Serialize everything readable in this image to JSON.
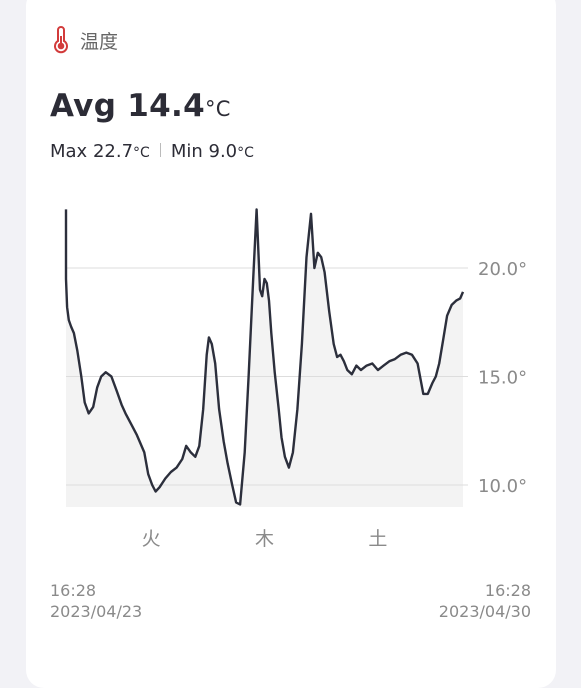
{
  "header": {
    "title": "温度",
    "icon": "thermometer-icon"
  },
  "summary": {
    "avg_label": "Avg",
    "avg_value": "14.4",
    "unit": "°C",
    "max_label": "Max",
    "max_value": "22.7",
    "min_label": "Min",
    "min_value": "9.0"
  },
  "footer": {
    "start_time": "16:28",
    "start_date": "2023/04/23",
    "end_time": "16:28",
    "end_date": "2023/04/30"
  },
  "chart_data": {
    "type": "line",
    "title": "",
    "xlabel": "",
    "ylabel": "",
    "x_range": [
      0,
      7
    ],
    "ylim": [
      9,
      22.7
    ],
    "y_ticks": [
      10,
      15,
      20
    ],
    "y_tick_labels": [
      "10.0°",
      "15.0°",
      "20.0°"
    ],
    "x_ticks": [
      1.5,
      3.5,
      5.5
    ],
    "x_tick_labels": [
      "火",
      "木",
      "土"
    ],
    "grid": true,
    "fill_area": true,
    "colors": {
      "line": "#2c2f3c",
      "fill": "#f3f3f3",
      "grid": "#dddddd"
    },
    "series": [
      {
        "x": [
          0.0,
          0.0,
          0.02,
          0.05,
          0.09,
          0.14,
          0.2,
          0.27,
          0.33,
          0.4,
          0.48,
          0.55,
          0.62,
          0.7,
          0.8,
          0.9,
          0.98,
          1.05,
          1.15,
          1.25,
          1.38,
          1.45,
          1.52,
          1.58,
          1.65,
          1.75,
          1.85,
          1.95,
          2.05,
          2.12,
          2.2,
          2.28,
          2.35,
          2.42,
          2.48,
          2.52,
          2.57,
          2.63,
          2.7,
          2.78,
          2.85,
          2.93,
          3.0,
          3.07,
          3.15,
          3.22,
          3.3,
          3.36,
          3.42,
          3.46,
          3.5,
          3.54,
          3.58,
          3.62,
          3.68,
          3.75,
          3.8,
          3.86,
          3.93,
          4.0,
          4.08,
          4.16,
          4.24,
          4.32,
          4.38,
          4.44,
          4.5,
          4.56,
          4.64,
          4.72,
          4.78,
          4.84,
          4.9,
          4.96,
          5.04,
          5.12,
          5.2,
          5.3,
          5.4,
          5.5,
          5.6,
          5.7,
          5.8,
          5.9,
          6.0,
          6.1,
          6.2,
          6.3,
          6.38,
          6.46,
          6.52,
          6.58,
          6.65,
          6.72,
          6.8,
          6.88,
          6.95,
          7.0
        ],
        "y": [
          22.7,
          19.5,
          18.2,
          17.6,
          17.3,
          17.0,
          16.2,
          15.0,
          13.8,
          13.3,
          13.6,
          14.5,
          15.0,
          15.2,
          15.0,
          14.3,
          13.7,
          13.3,
          12.8,
          12.3,
          11.5,
          10.5,
          10.0,
          9.7,
          9.9,
          10.3,
          10.6,
          10.8,
          11.2,
          11.8,
          11.5,
          11.3,
          11.8,
          13.5,
          16.0,
          16.8,
          16.5,
          15.6,
          13.5,
          12.0,
          11.0,
          10.0,
          9.2,
          9.1,
          11.5,
          15.0,
          19.5,
          22.7,
          19.0,
          18.7,
          19.5,
          19.3,
          18.5,
          17.0,
          15.2,
          13.5,
          12.2,
          11.3,
          10.8,
          11.5,
          13.5,
          16.5,
          20.5,
          22.5,
          20.0,
          20.7,
          20.5,
          19.8,
          18.0,
          16.5,
          15.9,
          16.0,
          15.7,
          15.3,
          15.1,
          15.5,
          15.3,
          15.5,
          15.6,
          15.3,
          15.5,
          15.7,
          15.8,
          16.0,
          16.1,
          16.0,
          15.6,
          14.2,
          14.2,
          14.7,
          15.0,
          15.6,
          16.7,
          17.8,
          18.3,
          18.5,
          18.6,
          18.9
        ]
      }
    ]
  }
}
